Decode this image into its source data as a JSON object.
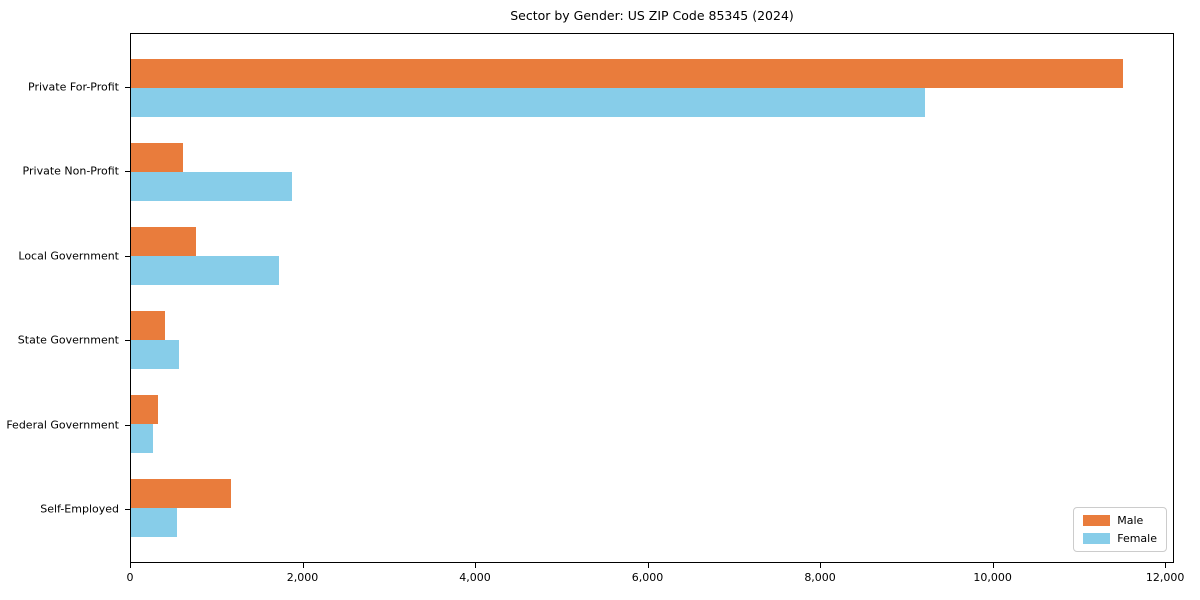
{
  "chart_data": {
    "type": "bar",
    "orientation": "horizontal",
    "title": "Sector by Gender: US ZIP Code 85345 (2024)",
    "categories": [
      "Private For-Profit",
      "Private Non-Profit",
      "Local Government",
      "State Government",
      "Federal Government",
      "Self-Employed"
    ],
    "series": [
      {
        "name": "Male",
        "color": "#E97C3C",
        "values": [
          11500,
          600,
          750,
          395,
          310,
          1155
        ]
      },
      {
        "name": "Female",
        "color": "#87CDE9",
        "values": [
          9210,
          1870,
          1715,
          560,
          250,
          530
        ]
      }
    ],
    "xlabel": "",
    "ylabel": "",
    "xlim": [
      0,
      12080
    ],
    "xticks": [
      0,
      2000,
      4000,
      6000,
      8000,
      10000,
      12000
    ],
    "xtick_labels": [
      "0",
      "2,000",
      "4,000",
      "6,000",
      "8,000",
      "10,000",
      "12,000"
    ],
    "grid": false,
    "legend": {
      "position": "lower right",
      "entries": [
        "Male",
        "Female"
      ]
    },
    "axis_color": "#000000",
    "background_color": "#ffffff"
  }
}
